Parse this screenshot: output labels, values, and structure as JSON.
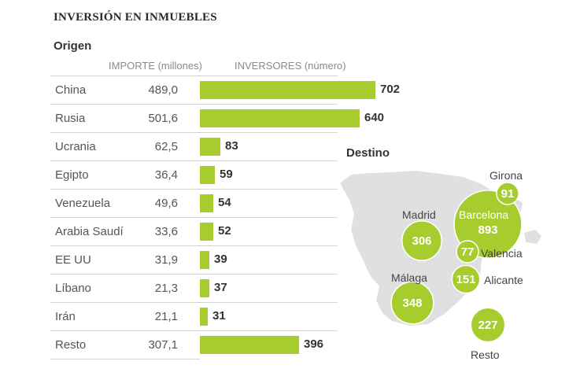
{
  "title": "INVERSIÓN EN INMUEBLES",
  "subtitle": "Origen",
  "col_importe": "IMPORTE (millones)",
  "col_inversores": "INVERSORES (número)",
  "destino_label": "Destino",
  "colors": {
    "bar": "#a7cc2e",
    "bubble": "#a7cc2e",
    "bubble_label": "#ffffff",
    "map": "#e0e0e0"
  },
  "chart_data": [
    {
      "type": "bar",
      "orientation": "horizontal",
      "categories": [
        "China",
        "Rusia",
        "Ucrania",
        "Egipto",
        "Venezuela",
        "Arabia Saudí",
        "EE UU",
        "Líbano",
        "Irán",
        "Resto"
      ],
      "importe": [
        "489,0",
        "501,6",
        "62,5",
        "36,4",
        "49,6",
        "33,6",
        "31,9",
        "21,3",
        "21,1",
        "307,1"
      ],
      "series": [
        {
          "name": "INVERSORES (número)",
          "values": [
            702,
            640,
            83,
            59,
            54,
            52,
            39,
            37,
            31,
            396
          ]
        }
      ]
    },
    {
      "type": "bubble-map",
      "title": "Destino",
      "points": [
        {
          "label": "Girona",
          "value": 91
        },
        {
          "label": "Barcelona",
          "value": 893
        },
        {
          "label": "Madrid",
          "value": 306
        },
        {
          "label": "Valencia",
          "value": 77
        },
        {
          "label": "Alicante",
          "value": 151
        },
        {
          "label": "Málaga",
          "value": 348
        },
        {
          "label": "Resto",
          "value": 227
        }
      ]
    }
  ]
}
